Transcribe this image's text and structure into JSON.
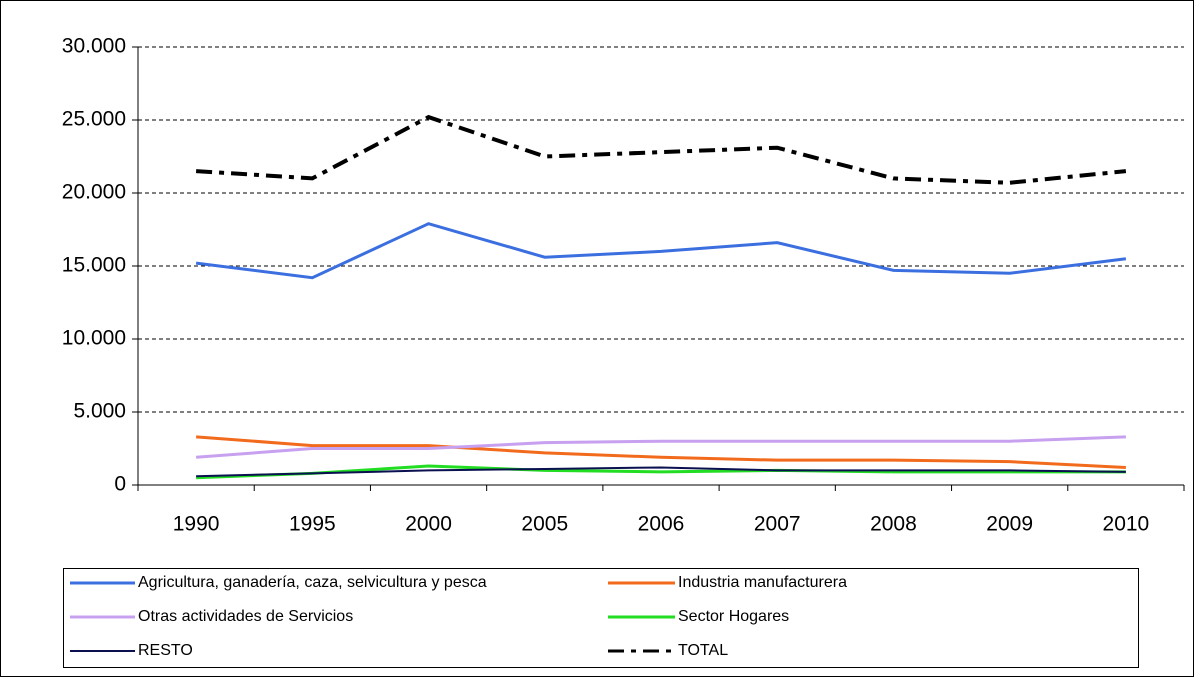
{
  "chart_data": {
    "type": "line",
    "categories": [
      "1990",
      "1995",
      "2000",
      "2005",
      "2006",
      "2007",
      "2008",
      "2009",
      "2010"
    ],
    "ylim": [
      0,
      30000
    ],
    "yticks": [
      0,
      {
        "value": 5000,
        "label": "5.000"
      },
      {
        "value": 10000,
        "label": "10.000"
      },
      {
        "value": 15000,
        "label": "15.000"
      },
      {
        "value": 20000,
        "label": "20.000"
      },
      {
        "value": 25000,
        "label": "25.000"
      },
      {
        "value": 30000,
        "label": "30.000"
      }
    ],
    "grid": true,
    "legend": "bottom",
    "series": [
      {
        "name": "Agricultura, ganadería, caza, selvicultura y pesca",
        "color": "#3b6fe0",
        "values": [
          15200,
          14200,
          17900,
          15600,
          16000,
          16600,
          14700,
          14500,
          15500
        ]
      },
      {
        "name": "Industria manufacturera",
        "color": "#f26b1d",
        "values": [
          3300,
          2700,
          2700,
          2200,
          1900,
          1700,
          1700,
          1600,
          1200
        ]
      },
      {
        "name": "Otras actividades de Servicios",
        "color": "#c8a0f0",
        "values": [
          1900,
          2500,
          2500,
          2900,
          3000,
          3000,
          3000,
          3000,
          3300
        ]
      },
      {
        "name": "Sector Hogares",
        "color": "#22dd22",
        "values": [
          500,
          800,
          1300,
          1000,
          900,
          1000,
          900,
          900,
          900
        ]
      },
      {
        "name": "RESTO",
        "color": "#0a1050",
        "values": [
          600,
          800,
          1000,
          1100,
          1200,
          1000,
          1000,
          1000,
          900
        ]
      },
      {
        "name": "TOTAL",
        "color": "#000000",
        "style": "dashdot",
        "values": [
          21500,
          21000,
          25200,
          22500,
          22800,
          23100,
          21000,
          20700,
          21500
        ]
      }
    ]
  }
}
